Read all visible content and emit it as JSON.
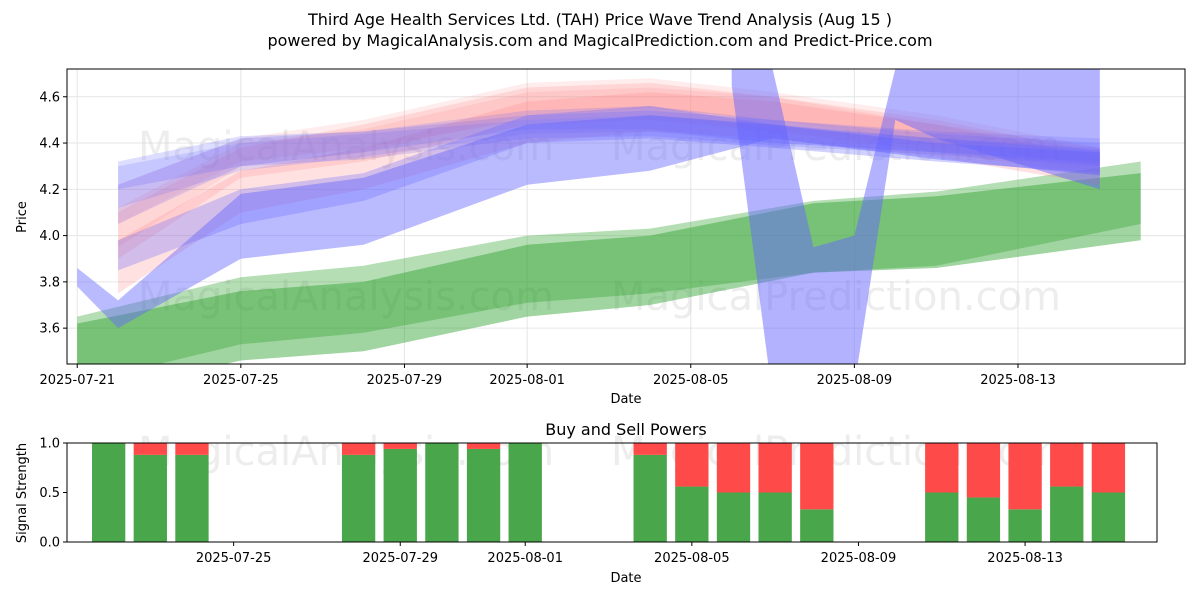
{
  "header": {
    "title_line1": "Third Age Health Services Ltd. (TAH) Price Wave Trend Analysis (Aug 15 )",
    "title_line2": "powered by MagicalAnalysis.com and MagicalPrediction.com and Predict-Price.com"
  },
  "watermarks": [
    "MagicalAnalysis.com",
    "MagicalPrediction.com"
  ],
  "chart_data": [
    {
      "type": "area",
      "title": "",
      "xlabel": "Date",
      "ylabel": "Price",
      "xlim": [
        "2025-07-20T18:00",
        "2025-08-17T02:00"
      ],
      "ylim": [
        3.445,
        4.72
      ],
      "x_ticks": [
        "2025-07-21",
        "2025-07-25",
        "2025-07-29",
        "2025-08-01",
        "2025-08-05",
        "2025-08-09",
        "2025-08-13"
      ],
      "y_ticks": [
        3.6,
        3.8,
        4.0,
        4.2,
        4.4,
        4.6
      ],
      "grid": true,
      "colors": {
        "green": "#2ca02c",
        "blue": "#6666ff",
        "red": "#ff7777"
      },
      "green_bands": [
        {
          "x": [
            "2025-07-21",
            "2025-07-25",
            "2025-07-28",
            "2025-08-01",
            "2025-08-04",
            "2025-08-08",
            "2025-08-11",
            "2025-08-16"
          ],
          "low": [
            3.36,
            3.53,
            3.58,
            3.71,
            3.75,
            3.84,
            3.87,
            4.05
          ],
          "high": [
            3.65,
            3.82,
            3.87,
            4.0,
            4.03,
            4.15,
            4.19,
            4.32
          ],
          "opacity": 0.35
        },
        {
          "x": [
            "2025-07-21",
            "2025-07-25",
            "2025-07-28",
            "2025-08-01",
            "2025-08-04",
            "2025-08-08",
            "2025-08-11",
            "2025-08-16"
          ],
          "low": [
            3.3,
            3.46,
            3.5,
            3.65,
            3.7,
            3.84,
            3.86,
            3.98
          ],
          "high": [
            3.62,
            3.76,
            3.8,
            3.96,
            4.0,
            4.14,
            4.17,
            4.27
          ],
          "opacity": 0.45
        }
      ],
      "blue_bands": [
        {
          "x": [
            "2025-07-21",
            "2025-07-22",
            "2025-07-25",
            "2025-07-28",
            "2025-08-01",
            "2025-08-04",
            "2025-08-07",
            "2025-08-11",
            "2025-08-15"
          ],
          "low": [
            3.78,
            3.6,
            3.9,
            3.96,
            4.22,
            4.28,
            4.42,
            4.33,
            4.26
          ],
          "high": [
            3.86,
            3.72,
            4.18,
            4.25,
            4.48,
            4.52,
            4.48,
            4.4,
            4.36
          ],
          "opacity": 0.45
        },
        {
          "x": [
            "2025-07-22",
            "2025-07-25",
            "2025-07-28",
            "2025-08-01",
            "2025-08-04",
            "2025-08-07",
            "2025-08-11",
            "2025-08-15"
          ],
          "low": [
            3.85,
            4.05,
            4.15,
            4.4,
            4.42,
            4.38,
            4.32,
            4.27
          ],
          "high": [
            3.98,
            4.2,
            4.27,
            4.52,
            4.56,
            4.48,
            4.42,
            4.37
          ],
          "opacity": 0.3
        },
        {
          "x": [
            "2025-07-22",
            "2025-07-25",
            "2025-07-28",
            "2025-08-01",
            "2025-08-04",
            "2025-08-07",
            "2025-08-11",
            "2025-08-15"
          ],
          "low": [
            4.2,
            4.3,
            4.33,
            4.42,
            4.43,
            4.39,
            4.35,
            4.3
          ],
          "high": [
            4.32,
            4.43,
            4.45,
            4.52,
            4.54,
            4.5,
            4.44,
            4.4
          ],
          "opacity": 0.22
        },
        {
          "x": [
            "2025-07-22",
            "2025-07-25",
            "2025-07-28",
            "2025-08-01",
            "2025-08-04",
            "2025-08-07",
            "2025-08-11",
            "2025-08-15"
          ],
          "low": [
            4.05,
            4.3,
            4.36,
            4.46,
            4.46,
            4.4,
            4.36,
            4.32
          ],
          "high": [
            4.22,
            4.42,
            4.45,
            4.54,
            4.56,
            4.5,
            4.45,
            4.42
          ],
          "opacity": 0.2
        },
        {
          "x": [
            "2025-07-22",
            "2025-07-25",
            "2025-07-28",
            "2025-08-01",
            "2025-08-04",
            "2025-08-07",
            "2025-08-11",
            "2025-08-15"
          ],
          "low": [
            4.12,
            4.28,
            4.34,
            4.44,
            4.45,
            4.4,
            4.36,
            4.31
          ],
          "high": [
            4.3,
            4.4,
            4.44,
            4.5,
            4.52,
            4.47,
            4.42,
            4.38
          ],
          "opacity": 0.18
        },
        {
          "x": [
            "2025-08-06",
            "2025-08-07",
            "2025-08-08",
            "2025-08-09",
            "2025-08-10",
            "2025-08-11",
            "2025-08-15"
          ],
          "low": [
            4.65,
            3.3,
            3.3,
            3.35,
            4.5,
            4.42,
            4.2
          ],
          "high": [
            4.72,
            4.72,
            3.95,
            4.0,
            4.72,
            4.72,
            4.72
          ],
          "opacity": 0.5
        }
      ],
      "red_bands": [
        {
          "x": [
            "2025-07-22",
            "2025-07-25",
            "2025-07-28",
            "2025-08-01",
            "2025-08-04",
            "2025-08-07",
            "2025-08-11",
            "2025-08-15"
          ],
          "low": [
            3.75,
            4.1,
            4.2,
            4.4,
            4.45,
            4.42,
            4.34,
            4.22
          ],
          "high": [
            3.98,
            4.28,
            4.38,
            4.58,
            4.62,
            4.58,
            4.48,
            4.34
          ],
          "opacity": 0.22
        },
        {
          "x": [
            "2025-07-22",
            "2025-07-25",
            "2025-07-28",
            "2025-08-01",
            "2025-08-04",
            "2025-08-07",
            "2025-08-11",
            "2025-08-15"
          ],
          "low": [
            3.9,
            4.25,
            4.32,
            4.48,
            4.5,
            4.45,
            4.36,
            4.26
          ],
          "high": [
            4.1,
            4.38,
            4.48,
            4.64,
            4.66,
            4.6,
            4.5,
            4.36
          ],
          "opacity": 0.18
        },
        {
          "x": [
            "2025-07-22",
            "2025-07-25",
            "2025-07-28",
            "2025-08-01",
            "2025-08-04",
            "2025-08-07",
            "2025-08-11",
            "2025-08-15"
          ],
          "low": [
            4.05,
            4.32,
            4.38,
            4.5,
            4.52,
            4.46,
            4.38,
            4.28
          ],
          "high": [
            4.22,
            4.42,
            4.5,
            4.66,
            4.68,
            4.62,
            4.52,
            4.38
          ],
          "opacity": 0.14
        },
        {
          "x": [
            "2025-07-22",
            "2025-07-25",
            "2025-07-28",
            "2025-08-01",
            "2025-08-04",
            "2025-08-07",
            "2025-08-11",
            "2025-08-15"
          ],
          "low": [
            3.95,
            4.3,
            4.36,
            4.52,
            4.55,
            4.5,
            4.4,
            4.3
          ],
          "high": [
            4.12,
            4.4,
            4.46,
            4.62,
            4.64,
            4.6,
            4.48,
            4.38
          ],
          "opacity": 0.14
        }
      ]
    },
    {
      "type": "bar",
      "title": "Buy and Sell Powers",
      "xlabel": "Date",
      "ylabel": "Signal Strength",
      "ylim": [
        0,
        1
      ],
      "y_ticks": [
        "0.0",
        "0.5",
        "1.0"
      ],
      "x_ticks": [
        "2025-07-25",
        "2025-07-29",
        "2025-08-01",
        "2025-08-05",
        "2025-08-09",
        "2025-08-13"
      ],
      "x_range": [
        "2025-07-21T00:00",
        "2025-08-16T04:00"
      ],
      "colors": {
        "buy": "#4aa64a",
        "sell": "#ff4a4a"
      },
      "categories": [
        "2025-07-22",
        "2025-07-23",
        "2025-07-24",
        "2025-07-28",
        "2025-07-29",
        "2025-07-30",
        "2025-07-31",
        "2025-08-01",
        "2025-08-04",
        "2025-08-05",
        "2025-08-06",
        "2025-08-07",
        "2025-08-08",
        "2025-08-11",
        "2025-08-12",
        "2025-08-13",
        "2025-08-14",
        "2025-08-15"
      ],
      "series": [
        {
          "values": [
            1.0,
            0.88,
            0.88,
            0.88,
            0.94,
            1.0,
            0.94,
            1.0,
            0.88,
            0.56,
            0.5,
            0.5,
            0.33,
            0.5,
            0.45,
            0.33,
            0.56,
            0.5
          ]
        },
        {
          "values": [
            0.0,
            0.12,
            0.12,
            0.12,
            0.06,
            0.0,
            0.06,
            0.0,
            0.12,
            0.44,
            0.5,
            0.5,
            0.67,
            0.5,
            0.55,
            0.67,
            0.44,
            0.5
          ]
        }
      ]
    }
  ]
}
